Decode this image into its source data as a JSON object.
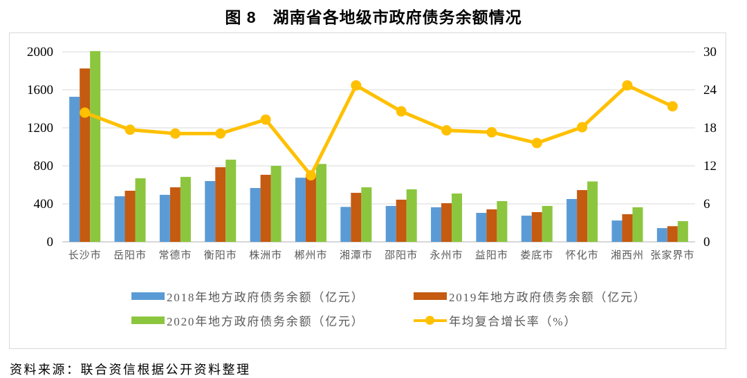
{
  "title": "图 8　湖南省各地级市政府债务余额情况",
  "source": "资料来源：联合资信根据公开资料整理",
  "chart_data": {
    "type": "combo",
    "categories": [
      "长沙市",
      "岳阳市",
      "常德市",
      "衡阳市",
      "株洲市",
      "郴州市",
      "湘潭市",
      "邵阳市",
      "永州市",
      "益阳市",
      "娄底市",
      "怀化市",
      "湘西州",
      "张家界市"
    ],
    "bar_series": [
      {
        "name": "2018年地方政府债务余额（亿元）",
        "color": "#5B9BD5",
        "values": [
          1527,
          480,
          495,
          640,
          567,
          675,
          368,
          378,
          364,
          305,
          276,
          451,
          225,
          145
        ]
      },
      {
        "name": "2019年地方政府债务余额（亿元）",
        "color": "#C55A11",
        "values": [
          1825,
          538,
          574,
          786,
          706,
          700,
          516,
          444,
          407,
          342,
          313,
          545,
          291,
          165
        ]
      },
      {
        "name": "2020年地方政府债务余额（亿元）",
        "color": "#8CC63F",
        "values": [
          2008,
          669,
          684,
          865,
          800,
          820,
          574,
          553,
          509,
          429,
          378,
          636,
          364,
          218
        ]
      }
    ],
    "line_series": {
      "name": "年均复合增长率（%）",
      "color": "#FFC000",
      "values": [
        20.4,
        17.7,
        17.1,
        17.1,
        19.3,
        10.5,
        24.7,
        20.6,
        17.6,
        17.3,
        15.6,
        18.1,
        24.7,
        21.4
      ]
    },
    "axis_left": {
      "min": 0,
      "max": 2000,
      "ticks": [
        0,
        400,
        800,
        1200,
        1600,
        2000
      ]
    },
    "axis_right": {
      "min": 0,
      "max": 30,
      "ticks": [
        0,
        6,
        12,
        18,
        24,
        30
      ]
    },
    "grid": true,
    "legend_position": "bottom"
  },
  "colors": {
    "grid": "#D9D9D9",
    "axis_line": "#BFBFBF",
    "tick_label": "#000000",
    "category_label": "#595959",
    "legend_label": "#595959",
    "border": "#D9D9D9"
  }
}
